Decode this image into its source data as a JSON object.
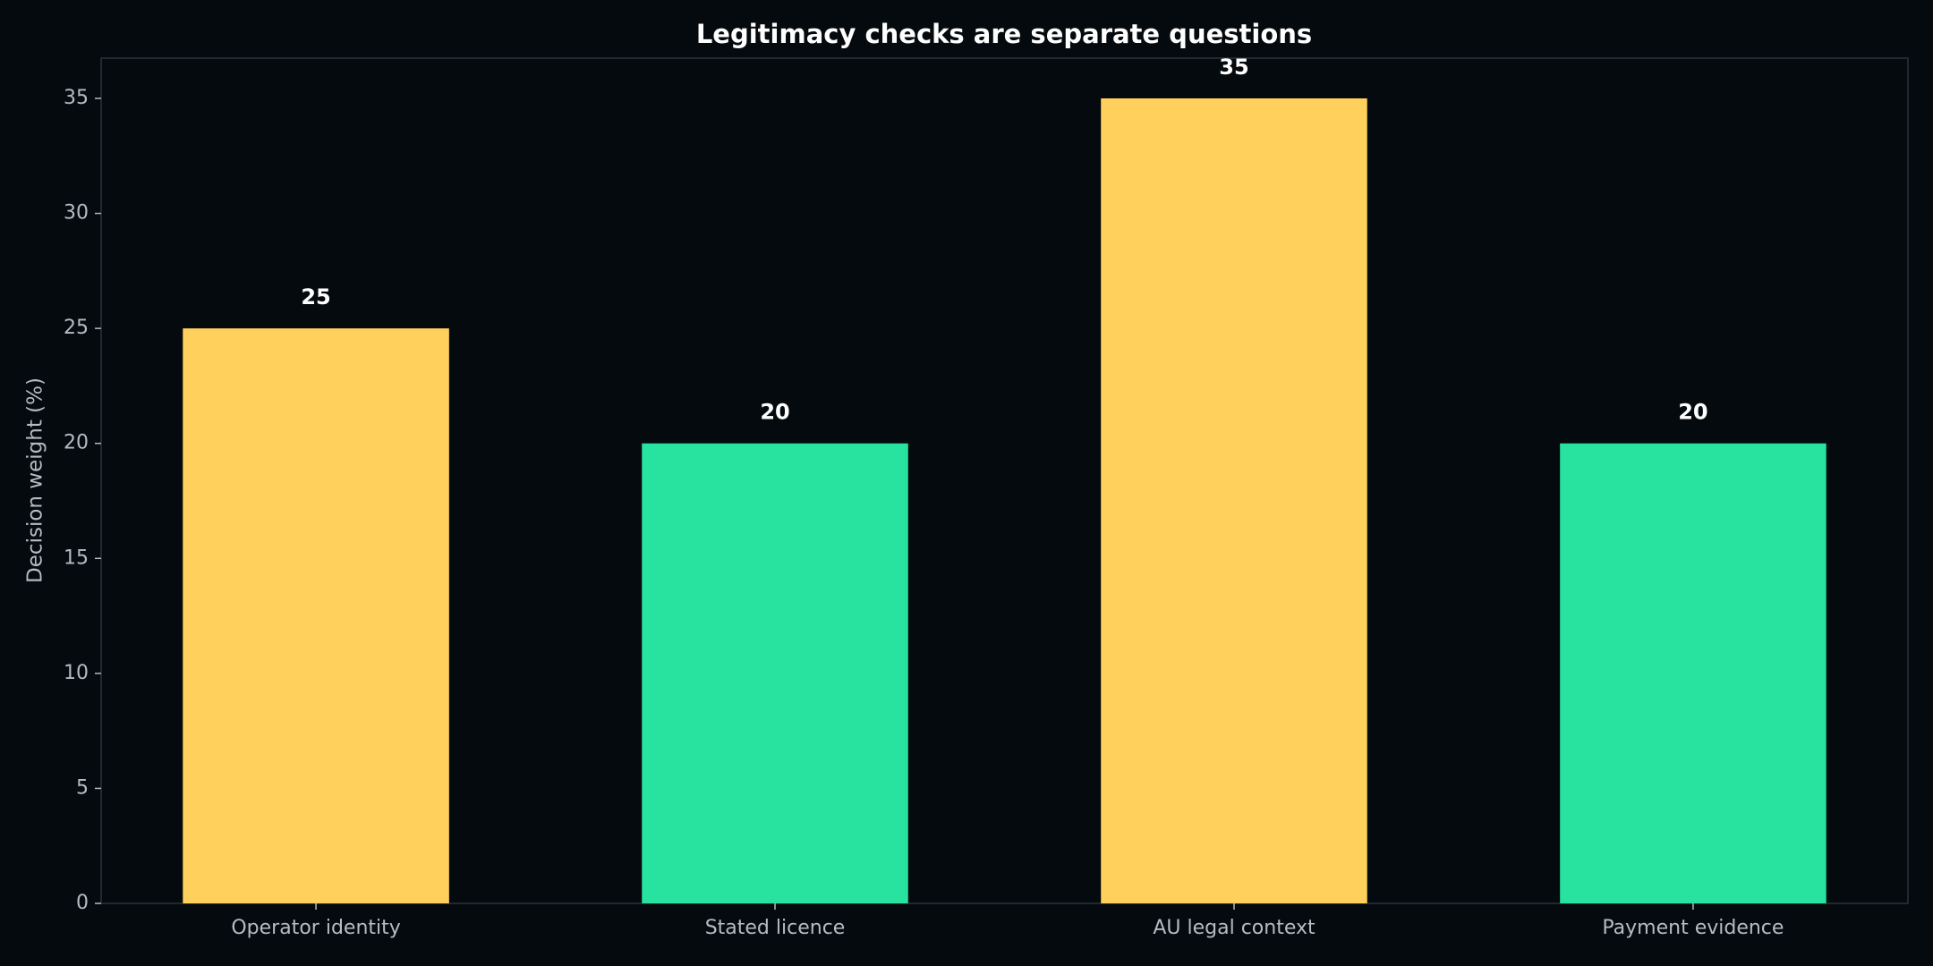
{
  "chart_data": {
    "type": "bar",
    "title": "Legitimacy checks are separate questions",
    "y_label": "Decision weight (%)",
    "categories": [
      "Operator identity",
      "Stated licence",
      "AU legal context",
      "Payment evidence"
    ],
    "values": [
      25,
      20,
      35,
      20
    ],
    "colors": [
      "#ffd15c",
      "#28e2a0",
      "#ffd15c",
      "#28e2a0"
    ],
    "ylim": [
      0,
      36.75
    ],
    "yticks": [
      0,
      5,
      10,
      15,
      20,
      25,
      30,
      35
    ],
    "grid": false
  }
}
